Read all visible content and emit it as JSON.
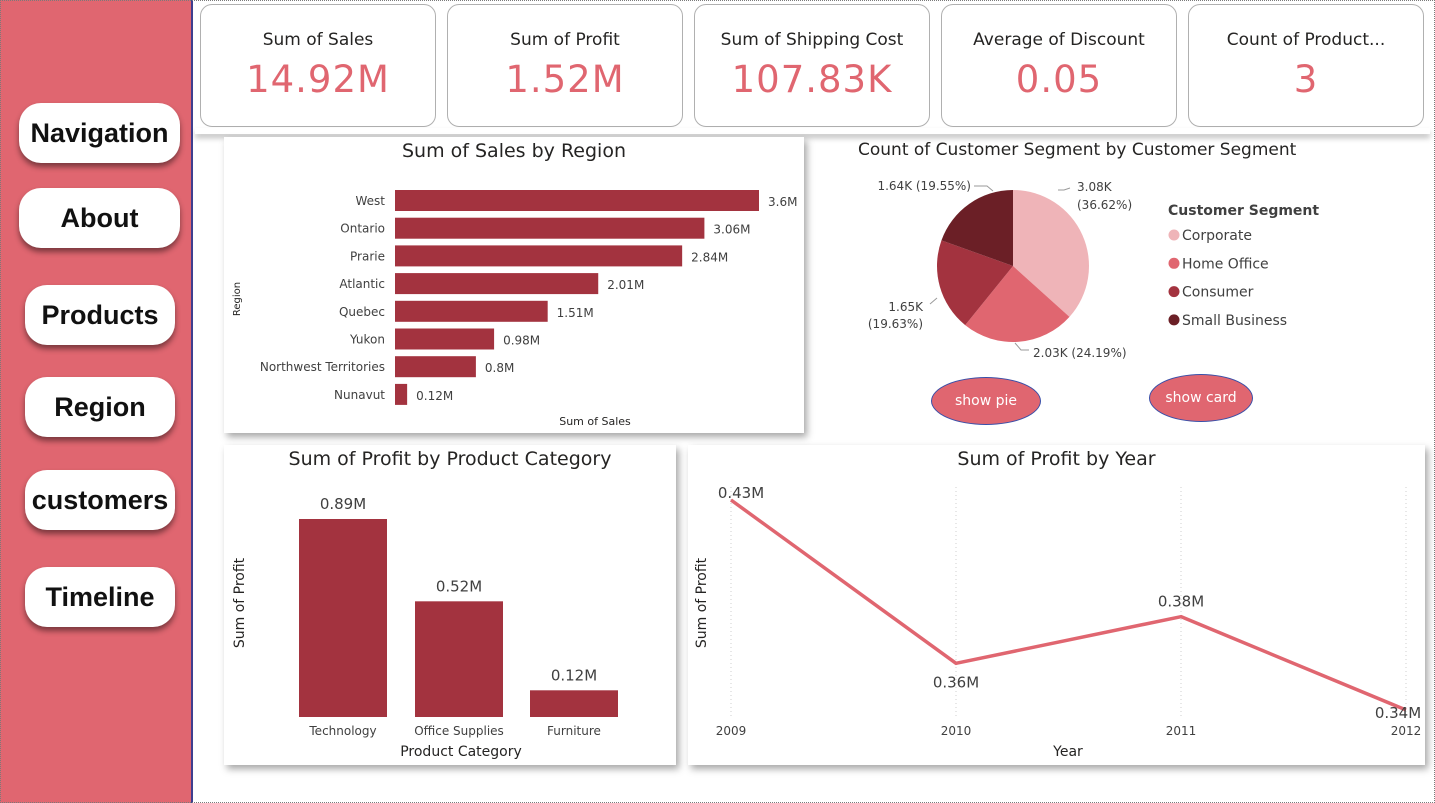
{
  "nav": {
    "items": [
      {
        "label": "Navigation"
      },
      {
        "label": "About"
      },
      {
        "label": "Products"
      },
      {
        "label": "Region"
      },
      {
        "label": "customers"
      },
      {
        "label": "Timeline"
      }
    ]
  },
  "cards": [
    {
      "label": "Sum of Sales",
      "value": "14.92M"
    },
    {
      "label": "Sum of Profit",
      "value": "1.52M"
    },
    {
      "label": "Sum of Shipping Cost",
      "value": "107.83K"
    },
    {
      "label": "Average of Discount",
      "value": "0.05"
    },
    {
      "label": "Count of Product...",
      "value": "3"
    }
  ],
  "buttons": {
    "show_pie": "show pie",
    "show_card": "show card"
  },
  "colors": {
    "accent": "#e06670",
    "bar": "#a3333f",
    "corporate": "#efb4b8",
    "home_office": "#e06670",
    "consumer": "#a3333f",
    "small_business": "#6b1f26",
    "line": "#e06670"
  },
  "chart_data": [
    {
      "type": "bar",
      "orientation": "horizontal",
      "title": "Sum of Sales by Region",
      "xlabel": "Sum of Sales",
      "ylabel": "Region",
      "categories": [
        "West",
        "Ontario",
        "Prarie",
        "Atlantic",
        "Quebec",
        "Yukon",
        "Northwest Territories",
        "Nunavut"
      ],
      "values": [
        3.6,
        3.06,
        2.84,
        2.01,
        1.51,
        0.98,
        0.8,
        0.12
      ],
      "labels": [
        "3.6M",
        "3.06M",
        "2.84M",
        "2.01M",
        "1.51M",
        "0.98M",
        "0.8M",
        "0.12M"
      ],
      "xlim": [
        0,
        3.6
      ]
    },
    {
      "type": "pie",
      "title": "Count of Customer Segment by Customer Segment",
      "legend_title": "Customer Segment",
      "legend_position": "right",
      "slices": [
        {
          "name": "Corporate",
          "value": 3080,
          "label": "3.08K",
          "pct": "(36.62%)"
        },
        {
          "name": "Home Office",
          "value": 2030,
          "label": "2.03K (24.19%)",
          "pct": ""
        },
        {
          "name": "Consumer",
          "value": 1650,
          "label": "1.65K",
          "pct": "(19.63%)"
        },
        {
          "name": "Small Business",
          "value": 1640,
          "label": "1.64K (19.55%)",
          "pct": ""
        }
      ]
    },
    {
      "type": "bar",
      "orientation": "vertical",
      "title": "Sum of Profit by Product Category",
      "xlabel": "Product Category",
      "ylabel": "Sum of Profit",
      "categories": [
        "Technology",
        "Office Supplies",
        "Furniture"
      ],
      "values": [
        0.89,
        0.52,
        0.12
      ],
      "labels": [
        "0.89M",
        "0.52M",
        "0.12M"
      ],
      "ylim": [
        0,
        0.89
      ]
    },
    {
      "type": "line",
      "title": "Sum of Profit by Year",
      "xlabel": "Year",
      "ylabel": "Sum of Profit",
      "x": [
        "2009",
        "2010",
        "2011",
        "2012"
      ],
      "values": [
        0.43,
        0.36,
        0.38,
        0.34
      ],
      "labels": [
        "0.43M",
        "0.36M",
        "0.38M",
        "0.34M"
      ],
      "ylim": [
        0.34,
        0.43
      ],
      "grid": "vertical dotted"
    }
  ]
}
